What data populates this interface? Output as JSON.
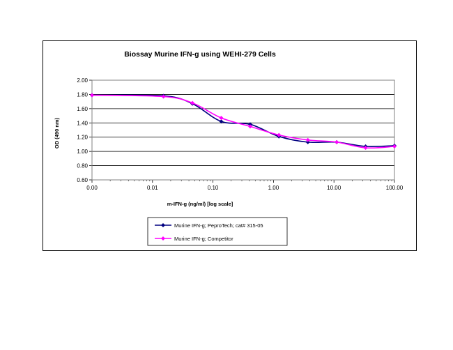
{
  "chart_data": {
    "type": "line",
    "title": "Biossay Murine IFN-g using WEHI-279 Cells",
    "xlabel": "m-IFN-g (ng/ml) [log scale]",
    "ylabel": "OD (490 nm)",
    "x_scale": "log",
    "x_ticks": [
      "0.00",
      "0.01",
      "0.10",
      "1.00",
      "10.00",
      "100.00"
    ],
    "x_tick_values": [
      0.001,
      0.01,
      0.1,
      1,
      10,
      100
    ],
    "y_ticks": [
      "0.60",
      "0.80",
      "1.00",
      "1.20",
      "1.40",
      "1.60",
      "1.80",
      "2.00"
    ],
    "ylim": [
      0.6,
      2.0
    ],
    "xlim": [
      0.001,
      100
    ],
    "grid": "horizontal",
    "legend_position": "bottom",
    "series": [
      {
        "name": "Murine IFN-g; PeproTech; cat# 315-05",
        "color": "#000080",
        "marker": "diamond",
        "x": [
          0.001,
          0.0152,
          0.0457,
          0.137,
          0.412,
          1.23,
          3.7,
          11.1,
          33.3,
          100
        ],
        "y": [
          1.79,
          1.78,
          1.67,
          1.42,
          1.38,
          1.21,
          1.13,
          1.13,
          1.07,
          1.08
        ]
      },
      {
        "name": "Murine IFN-g; Competitor",
        "color": "#ff00ff",
        "marker": "diamond",
        "x": [
          0.001,
          0.0152,
          0.0457,
          0.137,
          0.412,
          1.23,
          3.7,
          11.1,
          33.3,
          100
        ],
        "y": [
          1.79,
          1.77,
          1.68,
          1.47,
          1.35,
          1.23,
          1.16,
          1.13,
          1.05,
          1.07
        ]
      }
    ]
  }
}
